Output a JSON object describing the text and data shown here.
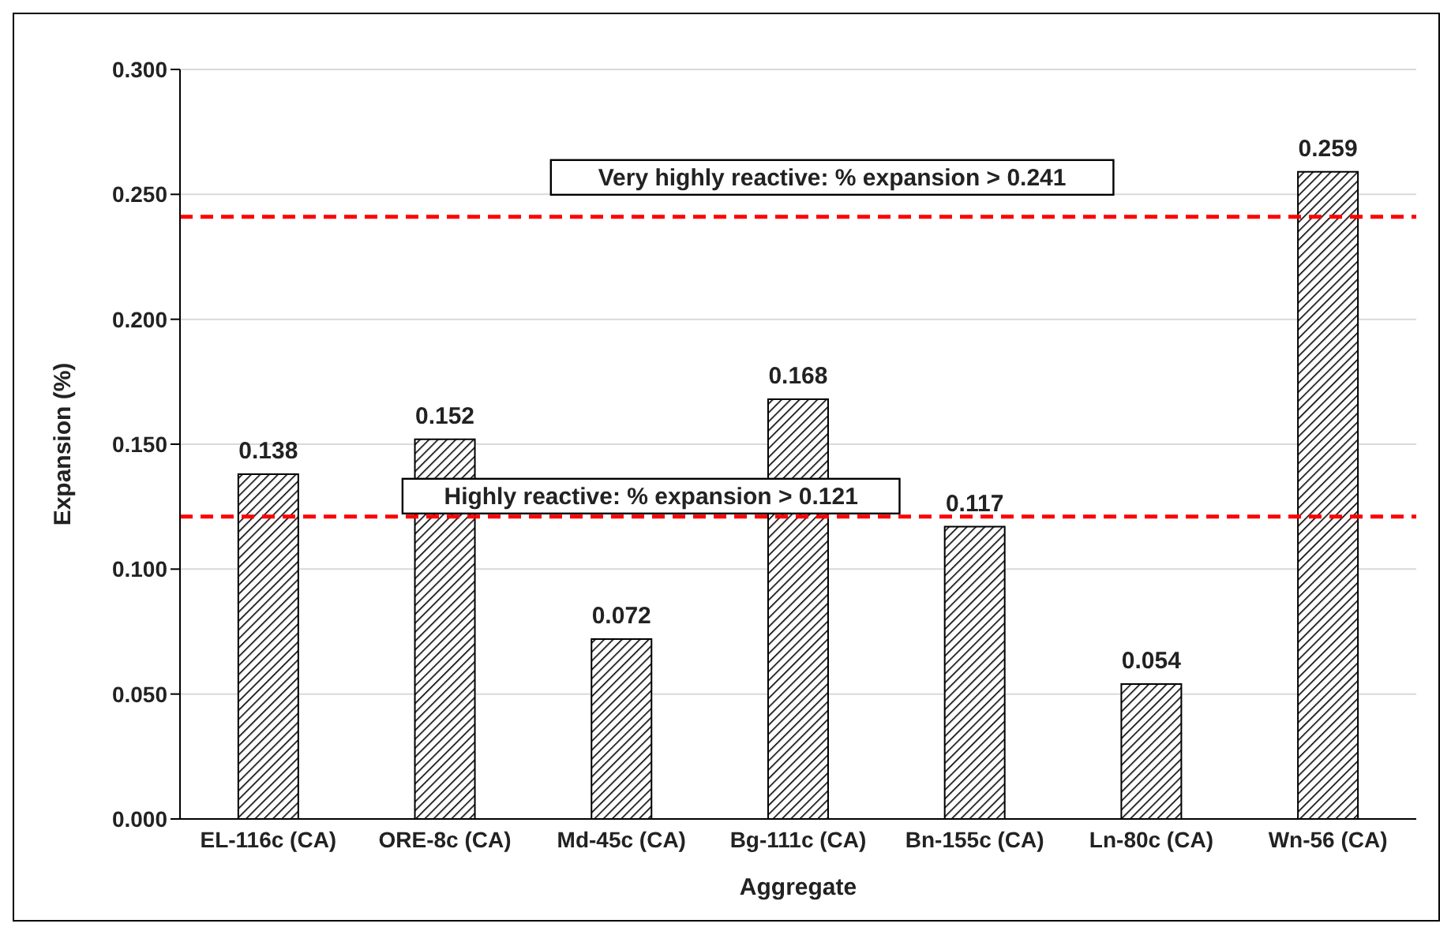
{
  "chart_data": {
    "type": "bar",
    "xlabel": "Aggregate",
    "ylabel": "Expansion (%)",
    "categories": [
      "EL-116c (CA)",
      "ORE-8c (CA)",
      "Md-45c (CA)",
      "Bg-111c (CA)",
      "Bn-155c (CA)",
      "Ln-80c (CA)",
      "Wn-56 (CA)"
    ],
    "values": [
      0.138,
      0.152,
      0.072,
      0.168,
      0.117,
      0.054,
      0.259
    ],
    "color": "#000000",
    "ylim": [
      0,
      0.3
    ],
    "yticks": [
      {
        "value": 0,
        "label": "0.000"
      },
      {
        "value": 0.05,
        "label": "0.050"
      },
      {
        "value": 0.1,
        "label": "0.100"
      },
      {
        "value": 0.15,
        "label": "0.150"
      },
      {
        "value": 0.2,
        "label": "0.200"
      },
      {
        "value": 0.25,
        "label": "0.250"
      },
      {
        "value": 0.3,
        "label": "0.300"
      }
    ],
    "grid": "y",
    "data_labels": true,
    "ref_lines": [
      {
        "axis": "y",
        "value": 0.241,
        "label": "Very highly reactive: % expansion > 0.241",
        "color": "#ff0000",
        "line_style": "dashed"
      },
      {
        "axis": "y",
        "value": 0.121,
        "label": "Highly reactive: % expansion > 0.121",
        "color": "#ff0000",
        "line_style": "dashed"
      }
    ]
  }
}
